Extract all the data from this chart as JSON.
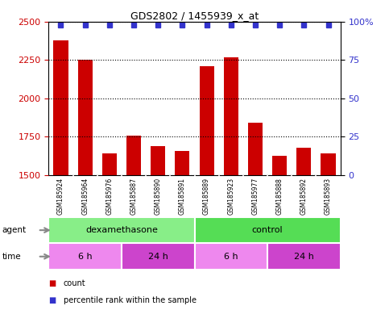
{
  "title": "GDS2802 / 1455939_x_at",
  "samples": [
    "GSM185924",
    "GSM185964",
    "GSM185976",
    "GSM185887",
    "GSM185890",
    "GSM185891",
    "GSM185889",
    "GSM185923",
    "GSM185977",
    "GSM185888",
    "GSM185892",
    "GSM185893"
  ],
  "bar_values": [
    2380,
    2250,
    1640,
    1755,
    1690,
    1660,
    2210,
    2270,
    1840,
    1625,
    1680,
    1640
  ],
  "percentile_values": [
    98,
    98,
    98,
    98,
    98,
    98,
    98,
    98,
    98,
    98,
    98,
    98
  ],
  "bar_color": "#cc0000",
  "dot_color": "#3333cc",
  "ylim_left": [
    1500,
    2500
  ],
  "ylim_right": [
    0,
    100
  ],
  "yticks_left": [
    1500,
    1750,
    2000,
    2250,
    2500
  ],
  "yticks_right": [
    0,
    25,
    50,
    75,
    100
  ],
  "agent_groups": [
    {
      "label": "dexamethasone",
      "start": 0,
      "end": 6,
      "color": "#88ee88"
    },
    {
      "label": "control",
      "start": 6,
      "end": 12,
      "color": "#55dd55"
    }
  ],
  "time_groups": [
    {
      "label": "6 h",
      "start": 0,
      "end": 3,
      "color": "#ee88ee"
    },
    {
      "label": "24 h",
      "start": 3,
      "end": 6,
      "color": "#cc44cc"
    },
    {
      "label": "6 h",
      "start": 6,
      "end": 9,
      "color": "#ee88ee"
    },
    {
      "label": "24 h",
      "start": 9,
      "end": 12,
      "color": "#cc44cc"
    }
  ],
  "legend_items": [
    {
      "label": "count",
      "color": "#cc0000"
    },
    {
      "label": "percentile rank within the sample",
      "color": "#3333cc"
    }
  ],
  "background_color": "#ffffff",
  "tick_label_color_left": "#cc0000",
  "tick_label_color_right": "#3333cc",
  "sample_bg_color": "#cccccc",
  "sample_border_color": "#ffffff"
}
